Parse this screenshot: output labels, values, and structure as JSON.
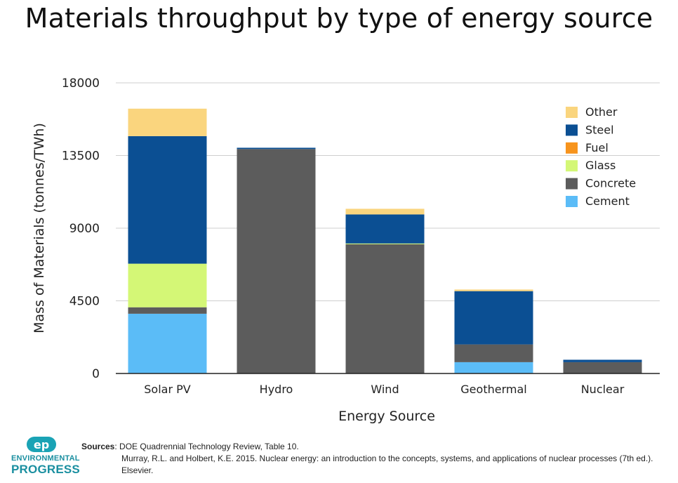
{
  "chart_data": {
    "type": "bar",
    "stacked": true,
    "title": "Materials throughput by type of energy source",
    "xlabel": "Energy Source",
    "ylabel": "Mass of Materials (tonnes/TWh)",
    "categories": [
      "Solar PV",
      "Hydro",
      "Wind",
      "Geothermal",
      "Nuclear"
    ],
    "ylim": [
      0,
      18000
    ],
    "yticks": [
      "0",
      "4500",
      "9000",
      "13500",
      "18000"
    ],
    "ytick_values": [
      0,
      4500,
      9000,
      13500,
      18000
    ],
    "grid": true,
    "legend_position": "top-right",
    "series": [
      {
        "name": "Cement",
        "color": "#5bbcf7",
        "values": [
          3700,
          0,
          0,
          700,
          0
        ]
      },
      {
        "name": "Concrete",
        "color": "#5c5c5c",
        "values": [
          400,
          13900,
          8000,
          1100,
          700
        ]
      },
      {
        "name": "Glass",
        "color": "#d4f776",
        "values": [
          2700,
          0,
          50,
          0,
          0
        ]
      },
      {
        "name": "Fuel",
        "color": "#f7941d",
        "values": [
          0,
          0,
          0,
          0,
          0
        ]
      },
      {
        "name": "Steel",
        "color": "#0b4f93",
        "values": [
          7900,
          80,
          1800,
          3300,
          150
        ]
      },
      {
        "name": "Other",
        "color": "#fad57e",
        "values": [
          1700,
          0,
          350,
          100,
          0
        ]
      }
    ],
    "legend_order": [
      "Other",
      "Steel",
      "Fuel",
      "Glass",
      "Concrete",
      "Cement"
    ]
  },
  "sources": {
    "label": "Sources",
    "line1": ": DOE Quadrennial Technology Review, Table 10.",
    "line2": "Murray, R.L. and Holbert, K.E. 2015. Nuclear energy: an introduction to the concepts, systems, and applications of nuclear processes (7th ed.). Elsevier."
  },
  "logo": {
    "icon": "ep-logo-icon",
    "line1": "ENVIRONMENTAL",
    "line2": "PROGRESS"
  }
}
